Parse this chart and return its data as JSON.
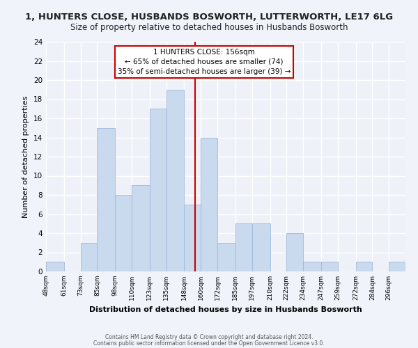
{
  "title": "1, HUNTERS CLOSE, HUSBANDS BOSWORTH, LUTTERWORTH, LE17 6LG",
  "subtitle": "Size of property relative to detached houses in Husbands Bosworth",
  "xlabel": "Distribution of detached houses by size in Husbands Bosworth",
  "ylabel": "Number of detached properties",
  "bin_labels": [
    "48sqm",
    "61sqm",
    "73sqm",
    "85sqm",
    "98sqm",
    "110sqm",
    "123sqm",
    "135sqm",
    "148sqm",
    "160sqm",
    "172sqm",
    "185sqm",
    "197sqm",
    "210sqm",
    "222sqm",
    "234sqm",
    "247sqm",
    "259sqm",
    "272sqm",
    "284sqm",
    "296sqm"
  ],
  "bin_edges": [
    48,
    61,
    73,
    85,
    98,
    110,
    123,
    135,
    148,
    160,
    172,
    185,
    197,
    210,
    222,
    234,
    247,
    259,
    272,
    284,
    296
  ],
  "counts": [
    1,
    0,
    3,
    15,
    8,
    9,
    17,
    19,
    7,
    14,
    3,
    5,
    5,
    0,
    4,
    1,
    1,
    0,
    1,
    0,
    1
  ],
  "bar_color": "#c9d9ee",
  "bar_edgecolor": "#a0b8d8",
  "property_line_x": 156,
  "property_line_color": "#cc0000",
  "annotation_line1": "1 HUNTERS CLOSE: 156sqm",
  "annotation_line2": "← 65% of detached houses are smaller (74)",
  "annotation_line3": "35% of semi-detached houses are larger (39) →",
  "annotation_box_edgecolor": "#cc0000",
  "annotation_box_facecolor": "#ffffff",
  "ylim": [
    0,
    24
  ],
  "yticks": [
    0,
    2,
    4,
    6,
    8,
    10,
    12,
    14,
    16,
    18,
    20,
    22,
    24
  ],
  "footnote1": "Contains HM Land Registry data © Crown copyright and database right 2024.",
  "footnote2": "Contains public sector information licensed under the Open Government Licence v3.0.",
  "title_fontsize": 9.5,
  "subtitle_fontsize": 8.5,
  "axis_bg": "#eef2f8",
  "grid_color": "#ffffff",
  "background_color": "#f0f4fa"
}
